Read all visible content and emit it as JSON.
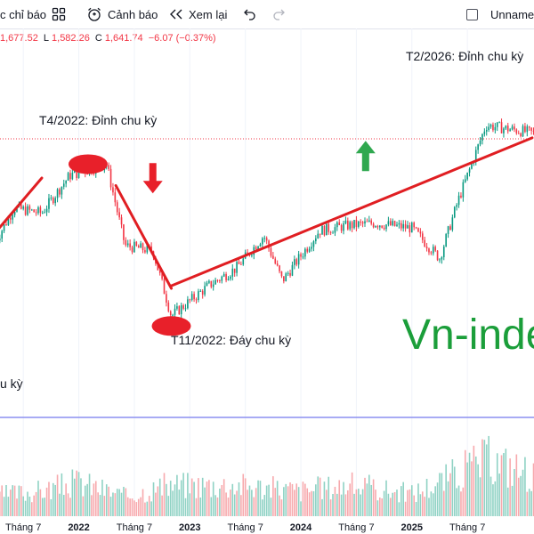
{
  "toolbar": {
    "indicators_label": "c chỉ báo",
    "indicators_icon": "templates-grid-icon",
    "alert_label": "Cảnh báo",
    "alert_icon": "alarm-clock-plus-icon",
    "replay_label": "Xem lại",
    "replay_icon": "rewind-icon",
    "undo_icon": "undo-arrow-icon",
    "redo_icon": "redo-arrow-icon",
    "layout_name": "Unnamed",
    "checkbox_checked": false
  },
  "ohlc": {
    "high": "1,677.52",
    "low_label": "L",
    "low": "1,582.26",
    "close_label": "C",
    "close": "1,641.74",
    "change": "−6.07 (−0.37%)"
  },
  "colors": {
    "up": "#089981",
    "down": "#f23645",
    "trend_line": "#e01e22",
    "marker": "#e8202a",
    "up_arrow": "#2fa84f",
    "watermark": "#1b9e3a",
    "pane_separator": "#8b8ff0"
  },
  "annotations": {
    "peak_2022": "T4/2022: Đỉnh chu kỳ",
    "bottom_2022": "T11/2022: Đáy chu kỳ",
    "peak_2026": "T2/2026: Đỉnh chu kỳ",
    "left_cut": "u kỳ",
    "watermark": "Vn-index"
  },
  "chart_data": {
    "type": "line",
    "title": "",
    "xlabel": "",
    "ylabel": "",
    "x_ticks": [
      "Tháng 7",
      "2022",
      "Tháng 7",
      "2023",
      "Tháng 7",
      "2024",
      "Tháng 7",
      "2025",
      "Tháng 7"
    ],
    "series": [
      {
        "x": [
          "2021-03",
          "2021-06",
          "2021-09",
          "2021-12",
          "2022-04",
          "2022-06",
          "2022-09",
          "2022-11",
          "2023-03",
          "2023-06",
          "2023-09",
          "2023-11",
          "2024-03",
          "2024-06",
          "2024-09",
          "2025-01",
          "2025-04",
          "2025-06",
          "2025-09",
          "2026-02"
        ],
        "values": [
          1150,
          1350,
          1330,
          1480,
          1525,
          1200,
          1180,
          920,
          1040,
          1110,
          1240,
          1060,
          1260,
          1280,
          1290,
          1270,
          1150,
          1380,
          1680,
          1650
        ]
      }
    ],
    "volume": {
      "x": [
        "2021-03",
        "2021-09",
        "2022-01",
        "2022-06",
        "2022-11",
        "2023-06",
        "2024-01",
        "2024-06",
        "2025-01",
        "2025-04",
        "2025-09",
        "2026-02"
      ],
      "values": [
        0.35,
        0.45,
        0.6,
        0.35,
        0.55,
        0.55,
        0.45,
        0.55,
        0.4,
        0.6,
        1.0,
        0.75
      ]
    }
  }
}
